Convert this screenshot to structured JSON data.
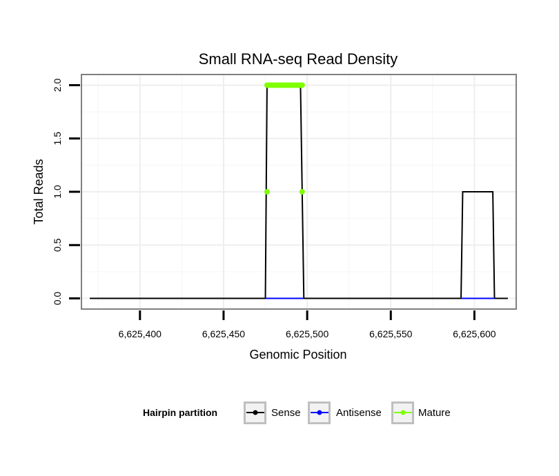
{
  "chart_data": {
    "type": "line",
    "title": "Small RNA-seq Read Density",
    "xlabel": "Genomic Position",
    "ylabel": "Total Reads",
    "xlim": [
      6625365,
      6625625
    ],
    "ylim": [
      -0.1,
      2.1
    ],
    "xticks": [
      6625400,
      6625450,
      6625500,
      6625550,
      6625600
    ],
    "xtick_labels": [
      "6,625,400",
      "6,625,450",
      "6,625,500",
      "6,625,550",
      "6,625,600"
    ],
    "yticks": [
      0,
      0.5,
      1,
      1.5,
      2
    ],
    "ytick_labels": [
      "0.0",
      "0.5",
      "1.0",
      "1.5",
      "2.0"
    ],
    "grid": true,
    "legend": {
      "title": "Hairpin partition",
      "position": "bottom",
      "entries": [
        {
          "label": "Sense",
          "color": "#000000"
        },
        {
          "label": "Antisense",
          "color": "#0000ff"
        },
        {
          "label": "Mature",
          "color": "#7fff00"
        }
      ]
    },
    "series": [
      {
        "name": "Sense",
        "color": "#000000",
        "points": true,
        "x": [
          6625370,
          6625475,
          6625476,
          6625496,
          6625498,
          6625592,
          6625593,
          6625611,
          6625612,
          6625620
        ],
        "y": [
          0,
          0,
          2,
          2,
          0,
          0,
          1,
          1,
          0,
          0
        ]
      },
      {
        "name": "Antisense",
        "color": "#0000ff",
        "points": false,
        "segments": [
          {
            "x": [
              6625475,
              6625498
            ],
            "y": [
              0,
              0
            ]
          },
          {
            "x": [
              6625592,
              6625612
            ],
            "y": [
              0,
              0
            ]
          }
        ]
      },
      {
        "name": "Mature",
        "color": "#7fff00",
        "points": true,
        "line_x": [
          6625476,
          6625497
        ],
        "line_y": [
          2,
          2
        ],
        "point_x": [
          6625476,
          6625477,
          6625478,
          6625479,
          6625480,
          6625481,
          6625482,
          6625483,
          6625484,
          6625485,
          6625486,
          6625487,
          6625488,
          6625489,
          6625490,
          6625491,
          6625492,
          6625493,
          6625494,
          6625495,
          6625496,
          6625497,
          6625476,
          6625497
        ],
        "point_y": [
          2,
          2,
          2,
          2,
          2,
          2,
          2,
          2,
          2,
          2,
          2,
          2,
          2,
          2,
          2,
          2,
          2,
          2,
          2,
          2,
          2,
          2,
          1,
          1
        ]
      }
    ]
  }
}
